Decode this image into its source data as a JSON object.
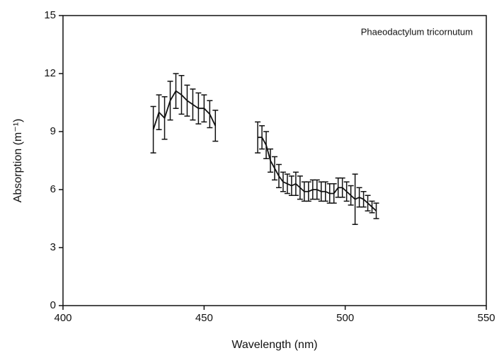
{
  "chart_data": {
    "type": "errorline",
    "annotation": "Phaeodactylum tricornutum",
    "xlabel": "Wavelength (nm)",
    "ylabel": "Absorption (m⁻¹)",
    "xlim": [
      400,
      550
    ],
    "xticks": [
      400,
      450,
      500,
      550
    ],
    "ylim": [
      0,
      15
    ],
    "yticks": [
      0,
      3,
      6,
      9,
      12,
      15
    ],
    "color": "#111111",
    "series": [
      {
        "x": [
          432,
          434,
          436,
          438,
          440,
          442,
          444,
          446,
          448,
          450,
          452,
          454
        ],
        "values": [
          9.1,
          10.0,
          9.7,
          10.6,
          11.1,
          10.9,
          10.6,
          10.4,
          10.2,
          10.2,
          9.9,
          9.3
        ],
        "errors": [
          1.2,
          0.9,
          1.1,
          1.0,
          0.9,
          1.0,
          0.8,
          0.8,
          0.8,
          0.7,
          0.7,
          0.8
        ]
      },
      {
        "x": [
          469,
          470.5,
          472,
          473.5,
          475,
          476.5,
          478,
          479.5,
          481,
          482.5,
          484,
          485.5,
          487,
          488.5,
          490,
          491.5,
          493,
          494.5,
          496,
          497.5,
          499,
          500.5,
          502,
          503.5,
          505,
          506.5,
          508,
          509.5,
          511
        ],
        "values": [
          8.7,
          8.7,
          8.3,
          7.5,
          7.1,
          6.7,
          6.4,
          6.3,
          6.2,
          6.3,
          6.1,
          5.9,
          5.9,
          6.0,
          6.0,
          5.9,
          5.9,
          5.8,
          5.8,
          6.1,
          6.1,
          5.9,
          5.7,
          5.5,
          5.6,
          5.5,
          5.3,
          5.1,
          4.9
        ],
        "errors": [
          0.8,
          0.6,
          0.7,
          0.6,
          0.6,
          0.6,
          0.5,
          0.5,
          0.5,
          0.6,
          0.6,
          0.5,
          0.5,
          0.5,
          0.5,
          0.5,
          0.5,
          0.5,
          0.5,
          0.5,
          0.5,
          0.5,
          0.5,
          1.3,
          0.5,
          0.4,
          0.4,
          0.3,
          0.4
        ]
      }
    ]
  }
}
